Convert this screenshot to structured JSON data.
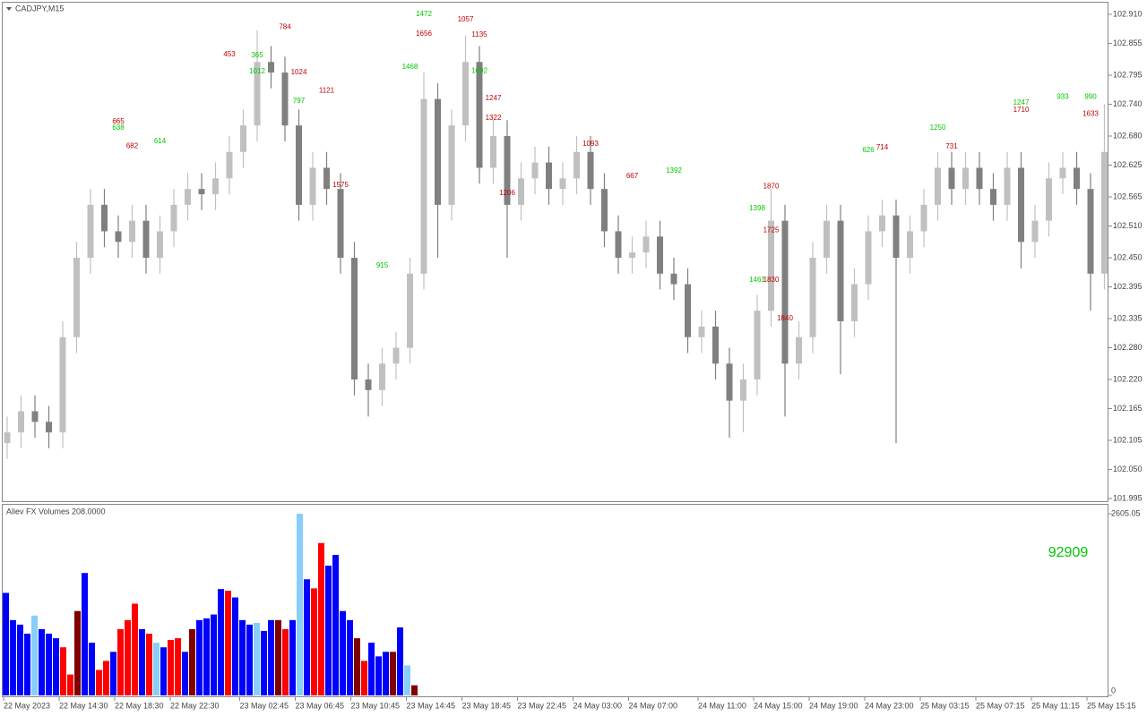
{
  "chart_data": [
    {
      "type": "candlestick",
      "title": "CADJPY,M15",
      "categories": [
        "22 May 2023",
        null,
        null,
        null,
        "22 May 14:30",
        null,
        null,
        null,
        "22 May 18:30",
        null,
        null,
        null,
        "22 May 22:30",
        null,
        null,
        null,
        null,
        "23 May 02:45",
        null,
        null,
        null,
        "23 May 06:45",
        null,
        null,
        null,
        "23 May 10:45",
        null,
        null,
        null,
        "23 May 14:45",
        null,
        null,
        null,
        "23 May 18:45",
        null,
        null,
        null,
        "23 May 22:45",
        null,
        null,
        null,
        "24 May 03:00",
        null,
        null,
        null,
        "24 May 07:00",
        null,
        null,
        null,
        null,
        "24 May 11:00",
        null,
        null,
        null,
        "24 May 15:00",
        null,
        null,
        null,
        "24 May 19:00",
        null,
        null,
        null,
        "24 May 23:00",
        null,
        null,
        null,
        "25 May 03:15",
        null,
        null,
        null,
        "25 May 07:15",
        null,
        null,
        null,
        "25 May 11:15",
        null,
        null,
        null,
        "25 May 15:15",
        null
      ],
      "open": [
        102.1,
        102.12,
        102.16,
        102.14,
        102.12,
        102.3,
        102.45,
        102.55,
        102.5,
        102.48,
        102.52,
        102.45,
        102.5,
        102.55,
        102.58,
        102.57,
        102.6,
        102.65,
        102.7,
        102.82,
        102.8,
        102.7,
        102.55,
        102.62,
        102.58,
        102.45,
        102.22,
        102.2,
        102.25,
        102.28,
        102.42,
        102.75,
        102.55,
        102.7,
        102.82,
        102.62,
        102.68,
        102.55,
        102.6,
        102.63,
        102.58,
        102.6,
        102.65,
        102.58,
        102.5,
        102.45,
        102.46,
        102.49,
        102.42,
        102.4,
        102.3,
        102.32,
        102.25,
        102.18,
        102.22,
        102.35,
        102.52,
        102.25,
        102.3,
        102.45,
        102.52,
        102.33,
        102.4,
        102.5,
        102.53,
        102.45,
        102.5,
        102.55,
        102.62,
        102.58,
        102.62,
        102.58,
        102.55,
        102.62,
        102.48,
        102.52,
        102.6,
        102.62,
        102.58,
        102.42
      ],
      "high": [
        102.15,
        102.19,
        102.19,
        102.17,
        102.33,
        102.48,
        102.58,
        102.58,
        102.53,
        102.55,
        102.55,
        102.53,
        102.58,
        102.61,
        102.61,
        102.63,
        102.68,
        102.73,
        102.88,
        102.85,
        102.83,
        102.73,
        102.65,
        102.65,
        102.61,
        102.48,
        102.25,
        102.28,
        102.31,
        102.45,
        102.8,
        102.78,
        102.73,
        102.87,
        102.85,
        102.71,
        102.71,
        102.63,
        102.66,
        102.66,
        102.63,
        102.68,
        102.68,
        102.61,
        102.53,
        102.49,
        102.52,
        102.52,
        102.45,
        102.43,
        102.35,
        102.35,
        102.28,
        102.25,
        102.38,
        102.58,
        102.55,
        102.33,
        102.48,
        102.55,
        102.55,
        102.43,
        102.53,
        102.56,
        102.56,
        102.53,
        102.58,
        102.65,
        102.65,
        102.65,
        102.65,
        102.61,
        102.65,
        102.65,
        102.55,
        102.63,
        102.65,
        102.65,
        102.61,
        102.74
      ],
      "low": [
        102.07,
        102.09,
        102.11,
        102.09,
        102.09,
        102.27,
        102.42,
        102.47,
        102.45,
        102.45,
        102.42,
        102.42,
        102.47,
        102.52,
        102.54,
        102.54,
        102.57,
        102.62,
        102.67,
        102.77,
        102.67,
        102.52,
        102.52,
        102.55,
        102.42,
        102.19,
        102.15,
        102.17,
        102.22,
        102.25,
        102.39,
        102.45,
        102.52,
        102.67,
        102.59,
        102.59,
        102.45,
        102.52,
        102.57,
        102.55,
        102.55,
        102.57,
        102.55,
        102.47,
        102.42,
        102.42,
        102.43,
        102.39,
        102.37,
        102.27,
        102.27,
        102.22,
        102.11,
        102.12,
        102.19,
        102.32,
        102.15,
        102.22,
        102.27,
        102.42,
        102.23,
        102.3,
        102.37,
        102.47,
        102.1,
        102.42,
        102.47,
        102.52,
        102.55,
        102.55,
        102.55,
        102.52,
        102.52,
        102.43,
        102.45,
        102.49,
        102.57,
        102.55,
        102.35,
        102.39
      ],
      "close": [
        102.12,
        102.16,
        102.14,
        102.12,
        102.3,
        102.45,
        102.55,
        102.5,
        102.48,
        102.52,
        102.45,
        102.5,
        102.55,
        102.58,
        102.57,
        102.6,
        102.65,
        102.7,
        102.82,
        102.8,
        102.7,
        102.55,
        102.62,
        102.58,
        102.45,
        102.22,
        102.2,
        102.25,
        102.28,
        102.42,
        102.75,
        102.55,
        102.7,
        102.82,
        102.62,
        102.68,
        102.55,
        102.6,
        102.63,
        102.58,
        102.6,
        102.65,
        102.58,
        102.5,
        102.45,
        102.46,
        102.49,
        102.42,
        102.4,
        102.3,
        102.32,
        102.25,
        102.18,
        102.22,
        102.35,
        102.52,
        102.25,
        102.3,
        102.45,
        102.52,
        102.33,
        102.4,
        102.5,
        102.53,
        102.45,
        102.5,
        102.55,
        102.62,
        102.58,
        102.62,
        102.58,
        102.55,
        102.62,
        102.48,
        102.52,
        102.6,
        102.62,
        102.58,
        102.42,
        102.65
      ],
      "up_color": "#c0c0c0",
      "down_color": "#808080",
      "ylim": [
        101.99,
        102.932
      ],
      "yticks": [
        {
          "value": 102.91,
          "label": "102.910"
        },
        102.855,
        102.795,
        {
          "value": 102.74,
          "label": "102.740"
        },
        {
          "value": 102.68,
          "label": "102.680"
        },
        102.625,
        102.565,
        {
          "value": 102.51,
          "label": "102.510"
        },
        {
          "value": 102.45,
          "label": "102.450"
        },
        102.395,
        102.335,
        {
          "value": 102.28,
          "label": "102.280"
        },
        {
          "value": 102.22,
          "label": "102.220"
        },
        102.165,
        102.105,
        {
          "value": 102.05,
          "label": "102.050"
        },
        101.995
      ],
      "annotations": [
        {
          "value": 665,
          "index": 8,
          "price": 102.707,
          "color": "#c00000"
        },
        {
          "value": 638,
          "index": 8,
          "price": 102.695,
          "color": "#00c800"
        },
        {
          "value": 682,
          "index": 9,
          "price": 102.661,
          "color": "#c00000"
        },
        {
          "value": 614,
          "index": 11,
          "price": 102.67,
          "color": "#00c800"
        },
        {
          "value": 453,
          "index": 16,
          "price": 102.834,
          "color": "#c00000"
        },
        {
          "value": 365,
          "index": 18,
          "price": 102.832,
          "color": "#00c800"
        },
        {
          "value": 784,
          "index": 20,
          "price": 102.886,
          "color": "#c00000"
        },
        {
          "value": 1012,
          "index": 18,
          "price": 102.802,
          "color": "#00c800"
        },
        {
          "value": 1024,
          "index": 21,
          "price": 102.8,
          "color": "#c00000"
        },
        {
          "value": 1121,
          "index": 23,
          "price": 102.766,
          "color": "#c00000"
        },
        {
          "value": 797,
          "index": 21,
          "price": 102.746,
          "color": "#00c800"
        },
        {
          "value": 1575,
          "index": 24,
          "price": 102.587,
          "color": "#c00000"
        },
        {
          "value": 915,
          "index": 27,
          "price": 102.435,
          "color": "#00c800"
        },
        {
          "value": 1468,
          "index": 29,
          "price": 102.81,
          "color": "#00c800"
        },
        {
          "value": 1656,
          "index": 30,
          "price": 102.873,
          "color": "#c00000"
        },
        {
          "value": 1472,
          "index": 30,
          "price": 102.91,
          "color": "#00c800"
        },
        {
          "value": 1057,
          "index": 33,
          "price": 102.9,
          "color": "#c00000"
        },
        {
          "value": 1135,
          "index": 34,
          "price": 102.871,
          "color": "#c00000"
        },
        {
          "value": 1092,
          "index": 34,
          "price": 102.803,
          "color": "#00c800"
        },
        {
          "value": 1247,
          "index": 35,
          "price": 102.751,
          "color": "#c00000"
        },
        {
          "value": 1322,
          "index": 35,
          "price": 102.714,
          "color": "#c00000"
        },
        {
          "value": 1206,
          "index": 36,
          "price": 102.572,
          "color": "#c00000"
        },
        {
          "value": 1093,
          "index": 42,
          "price": 102.665,
          "color": "#c00000"
        },
        {
          "value": 667,
          "index": 45,
          "price": 102.604,
          "color": "#c00000"
        },
        {
          "value": 1392,
          "index": 48,
          "price": 102.614,
          "color": "#00c800"
        },
        {
          "value": 1870,
          "index": 55,
          "price": 102.585,
          "color": "#c00000"
        },
        {
          "value": 1398,
          "index": 54,
          "price": 102.543,
          "color": "#00c800"
        },
        {
          "value": 1725,
          "index": 55,
          "price": 102.502,
          "color": "#c00000"
        },
        {
          "value": 1830,
          "index": 55,
          "price": 102.408,
          "color": "#c00000"
        },
        {
          "value": 1840,
          "index": 56,
          "price": 102.335,
          "color": "#c00000"
        },
        {
          "value": 1461,
          "index": 54,
          "price": 102.408,
          "color": "#00c800"
        },
        {
          "value": 714,
          "index": 63,
          "price": 102.658,
          "color": "#c00000"
        },
        {
          "value": 626,
          "index": 62,
          "price": 102.653,
          "color": "#00c800"
        },
        {
          "value": 1250,
          "index": 67,
          "price": 102.695,
          "color": "#00c800"
        },
        {
          "value": 731,
          "index": 68,
          "price": 102.66,
          "color": "#c00000"
        },
        {
          "value": 1247,
          "index": 73,
          "price": 102.743,
          "color": "#00c800"
        },
        {
          "value": 1710,
          "index": 73,
          "price": 102.729,
          "color": "#c00000"
        },
        {
          "value": 933,
          "index": 76,
          "price": 102.754,
          "color": "#00c800"
        },
        {
          "value": 990,
          "index": 78,
          "price": 102.754,
          "color": "#00c800"
        },
        {
          "value": 1633,
          "index": 78,
          "price": 102.722,
          "color": "#c00000"
        }
      ]
    },
    {
      "type": "bar",
      "title": "Aliev FX Volumes 208.0000",
      "values": [
        1470,
        1080,
        1015,
        885,
        1145,
        950,
        885,
        820,
        690,
        300,
        1210,
        1755,
        755,
        365,
        495,
        625,
        950,
        1080,
        1315,
        950,
        885,
        755,
        690,
        795,
        820,
        625,
        950,
        1080,
        1105,
        1160,
        1525,
        1500,
        1405,
        1080,
        1015,
        1040,
        925,
        1080,
        1080,
        950,
        1080,
        2605,
        1665,
        1535,
        2185,
        1860,
        2015,
        1210,
        1080,
        820,
        495,
        755,
        560,
        625,
        625,
        975,
        430,
        145
      ],
      "colors": [
        "#0000ff",
        "#0000ff",
        "#0000ff",
        "#0000ff",
        "#87cefa",
        "#0000ff",
        "#0000ff",
        "#0000ff",
        "#ff0000",
        "#ff0000",
        "#800000",
        "#0000ff",
        "#0000ff",
        "#ff0000",
        "#ff0000",
        "#0000ff",
        "#ff0000",
        "#ff0000",
        "#ff0000",
        "#0000ff",
        "#ff0000",
        "#87cefa",
        "#0000ff",
        "#ff0000",
        "#ff0000",
        "#0000ff",
        "#800000",
        "#0000ff",
        "#0000ff",
        "#0000ff",
        "#0000ff",
        "#ff0000",
        "#0000ff",
        "#0000ff",
        "#0000ff",
        "#87cefa",
        "#0000ff",
        "#0000ff",
        "#800000",
        "#ff0000",
        "#0000ff",
        "#87cefa",
        "#0000ff",
        "#ff0000",
        "#ff0000",
        "#0000ff",
        "#0000ff",
        "#0000ff",
        "#0000ff",
        "#800000",
        "#ff0000",
        "#0000ff",
        "#0000ff",
        "#0000ff",
        "#800000",
        "#0000ff",
        "#87cefa",
        "#800000"
      ],
      "ylim": [
        0,
        2605.05
      ],
      "yticks": [
        0,
        2605.05
      ],
      "annotations": [
        {
          "value": 92909,
          "color": "#00c800"
        }
      ]
    }
  ]
}
